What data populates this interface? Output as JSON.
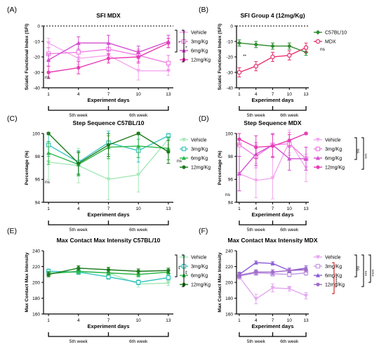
{
  "figure": {
    "panels": [
      {
        "label": "(A)",
        "title": "SFI MDX",
        "ylabel": "Sciatic Functional Index (SFI)",
        "xlabel": "Experiment days",
        "weeks": [
          "5th week",
          "6th week"
        ],
        "legend": [
          "Vehicle",
          "3mg/Kg",
          "6mg/Kg",
          "12mg/Kg"
        ],
        "annotations": [
          "ns"
        ],
        "sig": [
          "*",
          "*"
        ]
      },
      {
        "label": "(B)",
        "title": "SFI Group 4 (12mg/Kg)",
        "ylabel": "Sciatic Functional Index (SFI)",
        "xlabel": "Experiment days",
        "weeks": [
          "5th week",
          "6th week"
        ],
        "legend": [
          "C57BL/10",
          "MDX"
        ],
        "annotations": [
          "**",
          "ns"
        ]
      },
      {
        "label": "(C)",
        "title": "Step Sequence C57BL/10",
        "ylabel": "Percentage (%)",
        "xlabel": "Experiment days",
        "weeks": [
          "5th week",
          "6th week"
        ],
        "legend": [
          "Vehicle",
          "3mg/Kg",
          "6mg/Kg",
          "12mg/Kg"
        ],
        "annotations": [
          "ns",
          "ns"
        ]
      },
      {
        "label": "(D)",
        "title": "Step Sequence MDX",
        "ylabel": "Percentage (%)",
        "xlabel": "Experiment days",
        "weeks": [
          "5th week",
          "6th week"
        ],
        "legend": [
          "Vehicle",
          "3mg/Kg",
          "6mg/Kg",
          "12mg/Kg"
        ],
        "annotations": [
          "ns"
        ],
        "sig": [
          "ns",
          "***"
        ]
      },
      {
        "label": "(E)",
        "title": "Max Contact Max Intensity C57BL/10",
        "ylabel": "Max Contact Max Intensity",
        "xlabel": "Experiment days",
        "weeks": [
          "5th week",
          "6th week"
        ],
        "legend": [
          "Vehicle",
          "3mg/Kg",
          "6mg/Kg",
          "12mg/Kg"
        ],
        "sig": [
          "**",
          "**"
        ]
      },
      {
        "label": "(F)",
        "title": "Max Contact Max Intensity MDX",
        "ylabel": "Max Contact Max Intensity",
        "xlabel": "Experiment days",
        "weeks": [
          "5th week",
          "6th week"
        ],
        "legend": [
          "Vehicle",
          "3mg/Kg",
          "6mg/Kg",
          "12mg/Kg"
        ],
        "sig": [
          "ns",
          "***",
          "****",
          "****"
        ]
      }
    ]
  },
  "chart_data": [
    {
      "type": "line",
      "title": "SFI MDX",
      "xlabel": "Experiment days",
      "ylabel": "Sciatic Functional Index (SFI)",
      "x": [
        1,
        4,
        7,
        10,
        13
      ],
      "xlim": [
        0.5,
        13.5
      ],
      "ylim": [
        -40,
        0
      ],
      "yticks": [
        -40,
        -30,
        -20,
        -10,
        0
      ],
      "reference_line": 0,
      "legend_position": "right",
      "series": [
        {
          "name": "Vehicle",
          "color": "#f4a8ee",
          "marker": "triangle-down",
          "values": [
            -11,
            -21,
            -19,
            -29,
            -29
          ],
          "err": [
            3,
            4,
            4,
            6,
            3
          ]
        },
        {
          "name": "3mg/Kg",
          "color": "#f07fe6",
          "marker": "square",
          "values": [
            -18,
            -17,
            -15,
            -19,
            -24
          ],
          "err": [
            4,
            5,
            4,
            4,
            5
          ]
        },
        {
          "name": "6mg/Kg",
          "color": "#d44fd0",
          "marker": "triangle-up",
          "values": [
            -22,
            -11,
            -11,
            -17,
            -10
          ],
          "err": [
            4,
            4,
            5,
            4,
            4
          ]
        },
        {
          "name": "12mg/Kg",
          "color": "#e83cb4",
          "marker": "circle",
          "values": [
            -30,
            -27,
            -21,
            -20,
            -11
          ],
          "err": [
            4,
            4,
            3,
            4,
            3
          ]
        }
      ]
    },
    {
      "type": "line",
      "title": "SFI Group 4 (12mg/Kg)",
      "xlabel": "Experiment days",
      "ylabel": "Sciatic Functional Index (SFI)",
      "x": [
        1,
        4,
        7,
        10,
        13
      ],
      "xlim": [
        0.5,
        13.5
      ],
      "ylim": [
        -40,
        0
      ],
      "yticks": [
        -40,
        -30,
        -20,
        -10,
        0
      ],
      "reference_line": 0,
      "legend_position": "right",
      "series": [
        {
          "name": "C57BL/10",
          "color": "#2e8b2e",
          "marker": "diamond",
          "values": [
            -11,
            -12,
            -13,
            -13,
            -17
          ],
          "err": [
            2,
            2,
            2,
            2,
            2
          ]
        },
        {
          "name": "MDX",
          "color": "#e8336f",
          "marker": "circle-open",
          "values": [
            -30,
            -26,
            -20,
            -19,
            -14
          ],
          "err": [
            3,
            3,
            3,
            3,
            3
          ]
        }
      ]
    },
    {
      "type": "line",
      "title": "Step Sequence C57BL/10",
      "xlabel": "Experiment days",
      "ylabel": "Percentage (%)",
      "x": [
        1,
        4,
        7,
        10,
        13
      ],
      "xlim": [
        0.5,
        13.5
      ],
      "ylim": [
        94,
        100
      ],
      "yticks": [
        94,
        96,
        98,
        100
      ],
      "legend_position": "right",
      "series": [
        {
          "name": "Vehicle",
          "color": "#a5e8b8",
          "marker": "triangle-down",
          "values": [
            97.5,
            97.2,
            96.0,
            96.4,
            99.5
          ],
          "err": [
            1.5,
            1.5,
            1.8,
            1.5,
            0.5
          ]
        },
        {
          "name": "3mg/Kg",
          "color": "#3cc7c0",
          "marker": "square",
          "values": [
            99.0,
            97.5,
            99.2,
            98.5,
            99.8
          ],
          "err": [
            1.0,
            1.0,
            1.0,
            1.0,
            0.2
          ]
        },
        {
          "name": "6mg/Kg",
          "color": "#2db84a",
          "marker": "triangle-up",
          "values": [
            98.3,
            97.3,
            98.8,
            98.9,
            98.7
          ],
          "err": [
            1.0,
            1.0,
            1.0,
            1.0,
            1.0
          ]
        },
        {
          "name": "12mg/Kg",
          "color": "#1c7a1c",
          "marker": "circle",
          "values": [
            100.0,
            97.4,
            99.0,
            100.0,
            98.4
          ],
          "err": [
            0.1,
            1.0,
            1.0,
            0.1,
            1.0
          ]
        }
      ]
    },
    {
      "type": "line",
      "title": "Step Sequence MDX",
      "xlabel": "Experiment days",
      "ylabel": "Percentage (%)",
      "x": [
        1,
        4,
        7,
        10,
        13
      ],
      "xlim": [
        0.5,
        13.5
      ],
      "ylim": [
        94,
        100
      ],
      "yticks": [
        94,
        96,
        98,
        100
      ],
      "legend_position": "right",
      "series": [
        {
          "name": "Vehicle",
          "color": "#f4a8ee",
          "marker": "triangle-down",
          "values": [
            96.5,
            95.9,
            96.1,
            99.3,
            97.0
          ],
          "err": [
            1.5,
            1.5,
            1.8,
            1.0,
            1.2
          ]
        },
        {
          "name": "3mg/Kg",
          "color": "#f07fe6",
          "marker": "square",
          "values": [
            99.0,
            98.0,
            99.0,
            99.1,
            97.8
          ],
          "err": [
            1.0,
            1.0,
            1.0,
            1.0,
            1.0
          ]
        },
        {
          "name": "6mg/Kg",
          "color": "#d44fd0",
          "marker": "triangle-up",
          "values": [
            96.5,
            98.2,
            99.0,
            97.8,
            97.8
          ],
          "err": [
            1.5,
            1.0,
            1.0,
            1.0,
            1.0
          ]
        },
        {
          "name": "12mg/Kg",
          "color": "#e83cb4",
          "marker": "circle",
          "values": [
            99.5,
            98.8,
            98.9,
            99.4,
            100.0
          ],
          "err": [
            0.5,
            1.0,
            1.0,
            0.5,
            0.1
          ]
        }
      ]
    },
    {
      "type": "line",
      "title": "Max Contact Max Intensity C57BL/10",
      "xlabel": "Experiment days",
      "ylabel": "Max Contact Max Intensity",
      "x": [
        1,
        4,
        7,
        10,
        13
      ],
      "xlim": [
        0.5,
        13.5
      ],
      "ylim": [
        160,
        240
      ],
      "yticks": [
        160,
        180,
        200,
        220,
        240
      ],
      "legend_position": "right",
      "series": [
        {
          "name": "Vehicle",
          "color": "#a5e8b8",
          "marker": "triangle-down",
          "values": [
            212,
            213,
            212,
            198,
            199
          ],
          "err": [
            3,
            3,
            3,
            4,
            3
          ]
        },
        {
          "name": "3mg/Kg",
          "color": "#3cc7c0",
          "marker": "square",
          "values": [
            214,
            213,
            207,
            200,
            206
          ],
          "err": [
            3,
            3,
            3,
            3,
            3
          ]
        },
        {
          "name": "6mg/Kg",
          "color": "#2db84a",
          "marker": "triangle-up",
          "values": [
            211,
            214,
            212,
            210,
            213
          ],
          "err": [
            3,
            3,
            3,
            3,
            3
          ]
        },
        {
          "name": "12mg/Kg",
          "color": "#1c7a1c",
          "marker": "circle",
          "values": [
            210,
            218,
            216,
            214,
            215
          ],
          "err": [
            3,
            3,
            3,
            3,
            3
          ]
        }
      ]
    },
    {
      "type": "line",
      "title": "Max Contact Max Intensity MDX",
      "xlabel": "Experiment days",
      "ylabel": "Max Contact Max Intensity",
      "x": [
        1,
        4,
        7,
        10,
        13
      ],
      "xlim": [
        0.5,
        13.5
      ],
      "ylim": [
        160,
        240
      ],
      "yticks": [
        160,
        180,
        200,
        220,
        240
      ],
      "legend_position": "right",
      "series": [
        {
          "name": "Vehicle",
          "color": "#e3a8f0",
          "marker": "triangle-down",
          "values": [
            207,
            179,
            193,
            192,
            183
          ],
          "err": [
            3,
            6,
            5,
            3,
            4
          ]
        },
        {
          "name": "3mg/Kg",
          "color": "#c69be8",
          "marker": "square",
          "values": [
            208,
            212,
            211,
            210,
            212
          ],
          "err": [
            3,
            3,
            3,
            3,
            3
          ]
        },
        {
          "name": "6mg/Kg",
          "color": "#8a5cd6",
          "marker": "triangle-up",
          "values": [
            210,
            225,
            224,
            215,
            218
          ],
          "err": [
            3,
            2,
            2,
            3,
            3
          ]
        },
        {
          "name": "12mg/Kg",
          "color": "#a06cc8",
          "marker": "circle",
          "values": [
            209,
            213,
            213,
            215,
            216
          ],
          "err": [
            3,
            3,
            3,
            3,
            3
          ]
        }
      ]
    }
  ]
}
